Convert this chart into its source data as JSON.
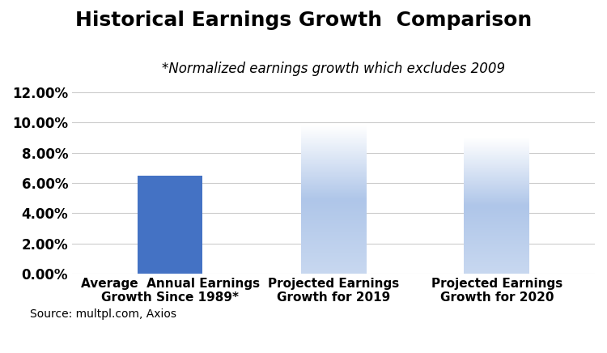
{
  "title": "Historical Earnings Growth  Comparison",
  "subtitle": "*Normalized earnings growth which excludes 2009",
  "source": "Source: multpl.com, Axios",
  "categories": [
    "Average  Annual Earnings\nGrowth Since 1989*",
    "Projected Earnings\nGrowth for 2019",
    "Projected Earnings\nGrowth for 2020"
  ],
  "values": [
    0.065,
    0.098,
    0.09
  ],
  "bar_solid_color": "#4472C4",
  "gradient_top_color": "#FFFFFF",
  "gradient_mid_color": "#AFC6E9",
  "gradient_bottom_color": "#C8D8F0",
  "bar_gradient": [
    false,
    true,
    true
  ],
  "ylim": [
    0,
    0.13
  ],
  "yticks": [
    0.0,
    0.02,
    0.04,
    0.06,
    0.08,
    0.1,
    0.12
  ],
  "ytick_labels": [
    "0.00%",
    "2.00%",
    "4.00%",
    "6.00%",
    "8.00%",
    "10.00%",
    "12.00%"
  ],
  "title_fontsize": 18,
  "subtitle_fontsize": 12,
  "tick_fontsize": 12,
  "xlabel_fontsize": 11,
  "source_fontsize": 10,
  "bar_width": 0.4,
  "background_color": "#FFFFFF",
  "grid_color": "#CCCCCC"
}
